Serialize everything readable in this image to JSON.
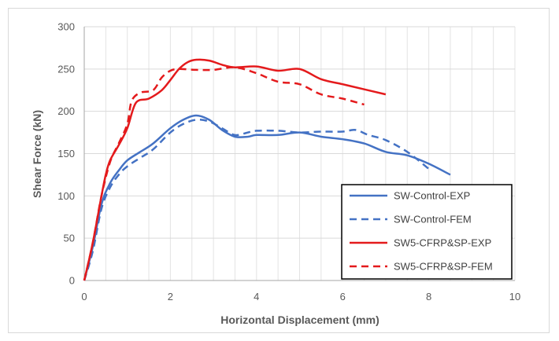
{
  "chart_data": {
    "type": "line",
    "title": "",
    "xlabel": "Horizontal Displacement (mm)",
    "ylabel": "Shear Force (kN)",
    "xlim": [
      0,
      10
    ],
    "ylim": [
      0,
      300
    ],
    "x_ticks": [
      "0",
      "2",
      "4",
      "6",
      "8",
      "10"
    ],
    "y_ticks": [
      "0",
      "50",
      "100",
      "150",
      "200",
      "250",
      "300"
    ],
    "grid": true,
    "legend_position": "bottom-right",
    "series": [
      {
        "name": "SW-Control-EXP",
        "color": "#4472c4",
        "dash": "solid",
        "points": [
          [
            0,
            0
          ],
          [
            0.2,
            40
          ],
          [
            0.4,
            90
          ],
          [
            0.6,
            115
          ],
          [
            0.8,
            130
          ],
          [
            1,
            142
          ],
          [
            1.3,
            152
          ],
          [
            1.6,
            162
          ],
          [
            2,
            180
          ],
          [
            2.3,
            190
          ],
          [
            2.6,
            195
          ],
          [
            2.9,
            190
          ],
          [
            3.2,
            178
          ],
          [
            3.5,
            170
          ],
          [
            3.8,
            170
          ],
          [
            4,
            172
          ],
          [
            4.5,
            172
          ],
          [
            5,
            175
          ],
          [
            5.5,
            170
          ],
          [
            6,
            167
          ],
          [
            6.5,
            162
          ],
          [
            7,
            152
          ],
          [
            7.5,
            148
          ],
          [
            8,
            138
          ],
          [
            8.5,
            125
          ]
        ]
      },
      {
        "name": "SW-Control-FEM",
        "color": "#4472c4",
        "dash": "dashed",
        "points": [
          [
            0,
            0
          ],
          [
            0.2,
            35
          ],
          [
            0.4,
            85
          ],
          [
            0.6,
            110
          ],
          [
            0.8,
            125
          ],
          [
            1,
            135
          ],
          [
            1.3,
            145
          ],
          [
            1.6,
            155
          ],
          [
            2,
            175
          ],
          [
            2.3,
            185
          ],
          [
            2.6,
            190
          ],
          [
            2.9,
            188
          ],
          [
            3.2,
            180
          ],
          [
            3.5,
            172
          ],
          [
            3.8,
            175
          ],
          [
            4,
            177
          ],
          [
            4.5,
            177
          ],
          [
            5,
            175
          ],
          [
            5.5,
            176
          ],
          [
            6,
            176
          ],
          [
            6.3,
            178
          ],
          [
            6.6,
            172
          ],
          [
            7,
            166
          ],
          [
            7.5,
            152
          ],
          [
            8,
            132
          ]
        ]
      },
      {
        "name": "SW5-CFRP&SP-EXP",
        "color": "#e41a1c",
        "dash": "solid",
        "points": [
          [
            0,
            0
          ],
          [
            0.2,
            45
          ],
          [
            0.4,
            100
          ],
          [
            0.5,
            125
          ],
          [
            0.6,
            142
          ],
          [
            0.8,
            160
          ],
          [
            1,
            180
          ],
          [
            1.2,
            210
          ],
          [
            1.5,
            215
          ],
          [
            1.8,
            225
          ],
          [
            2,
            237
          ],
          [
            2.2,
            250
          ],
          [
            2.4,
            258
          ],
          [
            2.6,
            261
          ],
          [
            2.9,
            260
          ],
          [
            3.2,
            255
          ],
          [
            3.5,
            252
          ],
          [
            4,
            253
          ],
          [
            4.5,
            248
          ],
          [
            5,
            250
          ],
          [
            5.5,
            238
          ],
          [
            6,
            232
          ],
          [
            6.5,
            226
          ],
          [
            7,
            220
          ]
        ]
      },
      {
        "name": "SW5-CFRP&SP-FEM",
        "color": "#e41a1c",
        "dash": "dashed",
        "points": [
          [
            0,
            0
          ],
          [
            0.2,
            45
          ],
          [
            0.4,
            100
          ],
          [
            0.6,
            140
          ],
          [
            0.8,
            162
          ],
          [
            1,
            185
          ],
          [
            1.1,
            212
          ],
          [
            1.3,
            222
          ],
          [
            1.6,
            225
          ],
          [
            1.8,
            240
          ],
          [
            2,
            248
          ],
          [
            2.2,
            250
          ],
          [
            2.6,
            249
          ],
          [
            3,
            249
          ],
          [
            3.5,
            252
          ],
          [
            4,
            245
          ],
          [
            4.5,
            235
          ],
          [
            5,
            232
          ],
          [
            5.5,
            220
          ],
          [
            6,
            215
          ],
          [
            6.5,
            208
          ]
        ]
      }
    ]
  }
}
